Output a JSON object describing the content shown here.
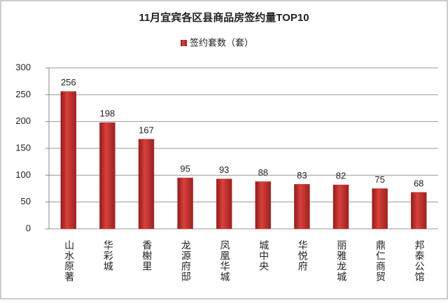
{
  "chart_data": {
    "type": "bar",
    "title": "11月宜宾各区县商品房签约量TOP10",
    "categories": [
      "山水原著",
      "华彩城",
      "香榭里",
      "龙源府邸",
      "凤凰华城",
      "城中央",
      "华悦府",
      "丽雅龙城",
      "鼎仁商贸",
      "邦泰公馆"
    ],
    "series": [
      {
        "name": "签约套数（套）",
        "color": "#c0302e",
        "values": [
          256,
          198,
          167,
          95,
          93,
          88,
          83,
          82,
          75,
          68
        ]
      }
    ],
    "ylim": [
      0,
      300
    ],
    "yticks": [
      0,
      50,
      100,
      150,
      200,
      250,
      300
    ],
    "grid": true,
    "legend": "top",
    "data_labels": true
  }
}
